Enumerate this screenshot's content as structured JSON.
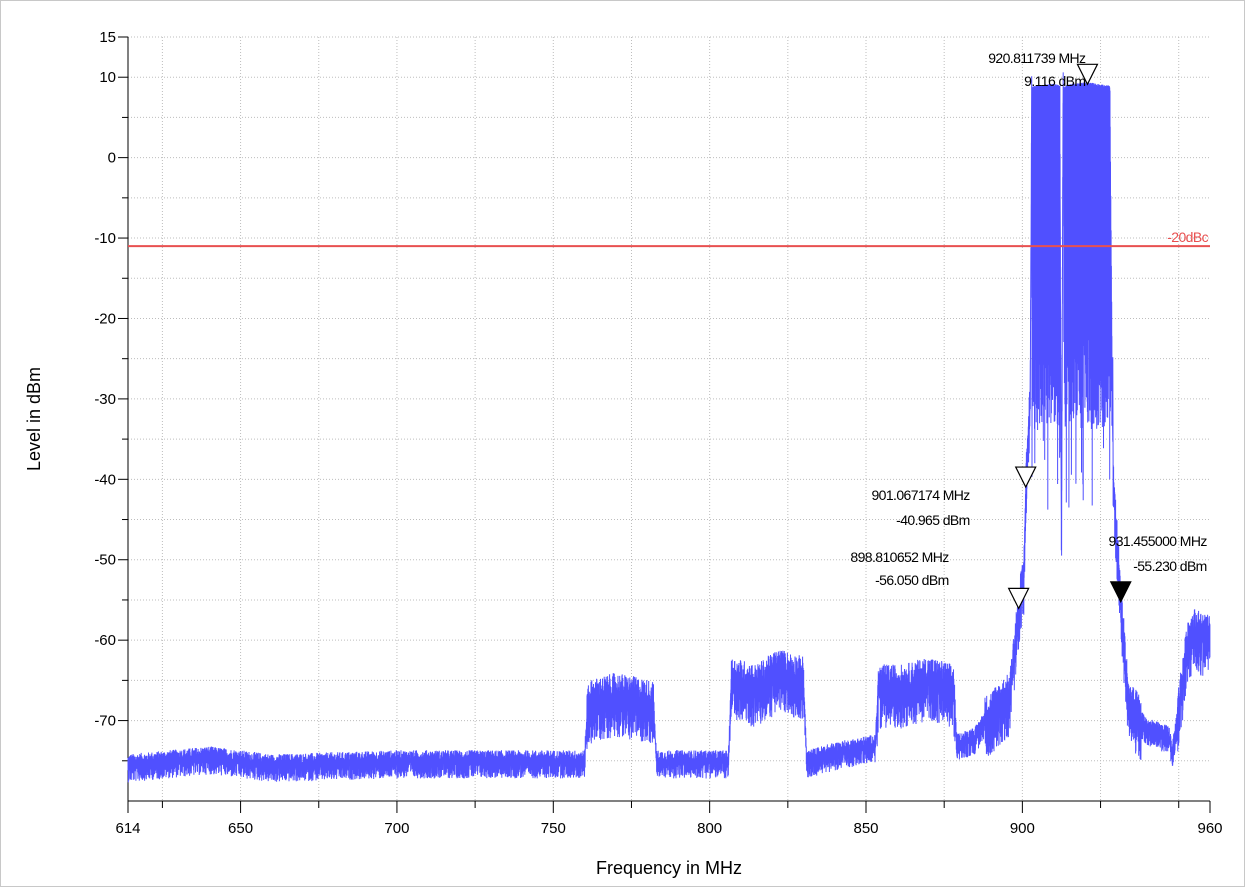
{
  "chart_data": {
    "type": "line",
    "title": "",
    "xlabel": "Frequency in MHz",
    "ylabel": "Level in dBm",
    "xlim": [
      614,
      960
    ],
    "ylim": [
      -80,
      15
    ],
    "x_ticks": [
      614,
      650,
      700,
      750,
      800,
      850,
      900,
      960
    ],
    "x_tick_labels": [
      "614",
      "650",
      "700",
      "750",
      "800",
      "850",
      "900",
      "960"
    ],
    "y_ticks": [
      15,
      10,
      0,
      -10,
      -20,
      -30,
      -40,
      -50,
      -60,
      -70
    ],
    "y_tick_labels": [
      "15",
      "10",
      "0",
      "-10",
      "-20",
      "-30",
      "-40",
      "-50",
      "-60",
      "-70"
    ],
    "grid": true,
    "series": [
      {
        "color": "#5050ff",
        "x": [
          614,
          640,
          660,
          700,
          740,
          760,
          761,
          770,
          782,
          783,
          800,
          806,
          807,
          815,
          822,
          830,
          831,
          840,
          853,
          854,
          862,
          870,
          878,
          879,
          885,
          888,
          893,
          896,
          898.8,
          900.5,
          901.07,
          902.5,
          903,
          905,
          910,
          912,
          912.5,
          913,
          915,
          920.81,
          925,
          928,
          929,
          931.46,
          932,
          934,
          938,
          940,
          947,
          948,
          953,
          955,
          960
        ],
        "y": [
          -75.5,
          -74.5,
          -75.5,
          -75,
          -75,
          -75,
          -68,
          -67,
          -68,
          -75,
          -75,
          -75,
          -65,
          -66,
          -64,
          -65,
          -75,
          -74,
          -73,
          -66,
          -66,
          -65,
          -66,
          -73,
          -72,
          -70,
          -68,
          -67,
          -56.05,
          -52,
          -40.965,
          -30,
          8.5,
          8.8,
          8.9,
          8.7,
          -52,
          8.5,
          8.9,
          9.116,
          8.8,
          8.7,
          -40,
          -55.23,
          -58,
          -68,
          -70,
          -71,
          -72,
          -74,
          -60,
          -59,
          -60
        ]
      }
    ],
    "reference_line": {
      "label": "-20dBc",
      "value": -11,
      "color": "#e85050"
    },
    "markers": [
      {
        "freq_label": "920.811739 MHz",
        "level_label": "9.116 dBm",
        "x": 920.81,
        "y": 9.116,
        "filled": false
      },
      {
        "freq_label": "901.067174 MHz",
        "level_label": "-40.965 dBm",
        "x": 901.07,
        "y": -40.965,
        "filled": false
      },
      {
        "freq_label": "898.810652 MHz",
        "level_label": "-56.050 dBm",
        "x": 898.81,
        "y": -56.05,
        "filled": false
      },
      {
        "freq_label": "931.455000 MHz",
        "level_label": "-55.230 dBm",
        "x": 931.46,
        "y": -55.23,
        "filled": true
      }
    ]
  }
}
